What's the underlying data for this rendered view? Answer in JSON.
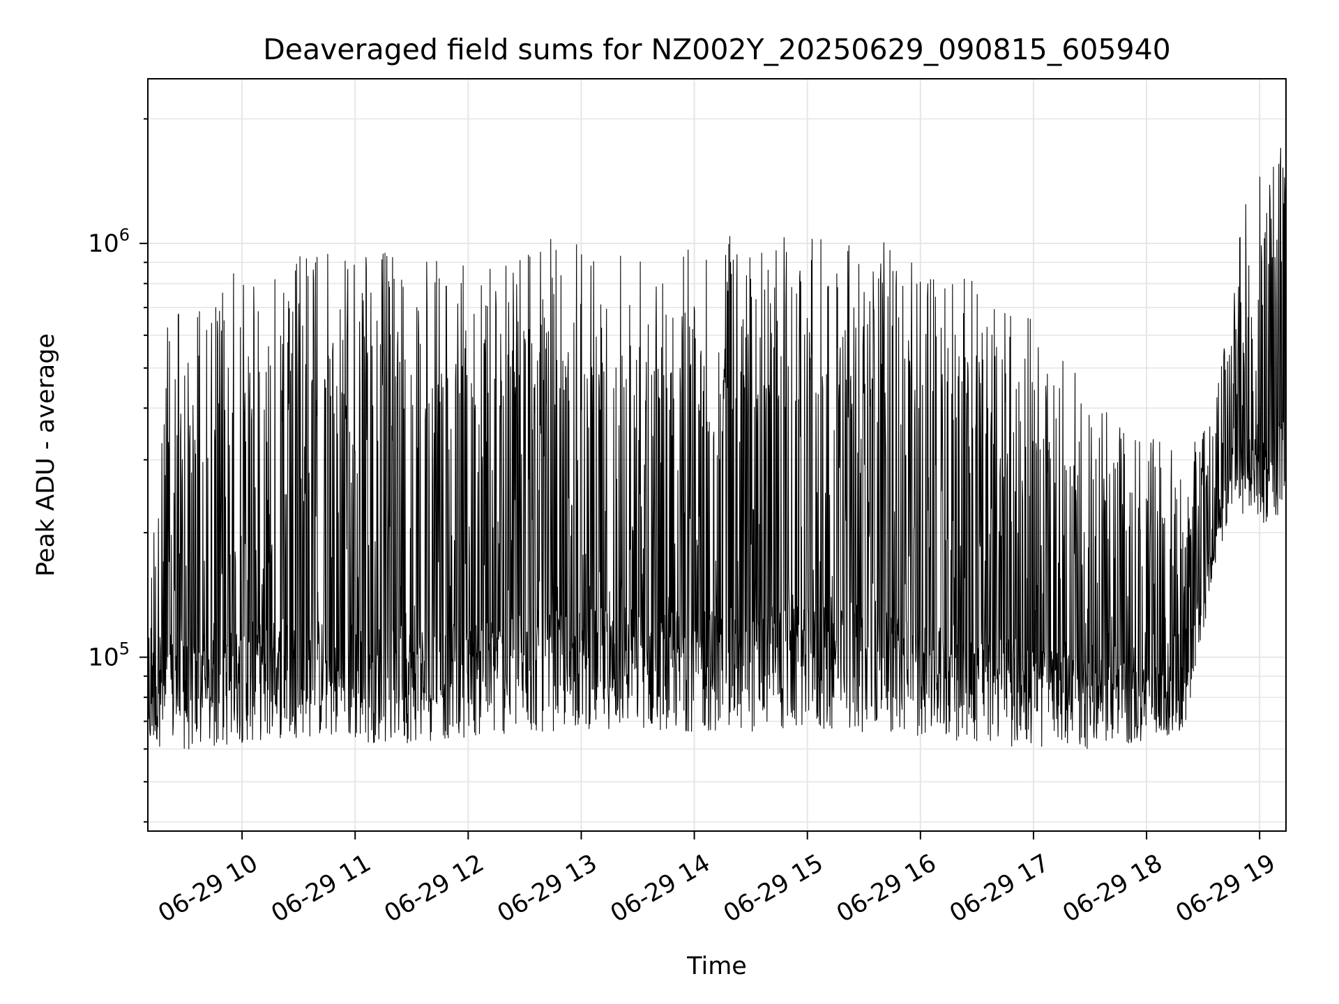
{
  "chart_data": {
    "type": "line",
    "title": "Deaveraged field sums for NZ002Y_20250629_090815_605940",
    "xlabel": "Time",
    "ylabel": "Peak ADU - average",
    "yscale": "log",
    "ylim": [
      38000,
      2500000
    ],
    "xlim": [
      "2025-06-29 09:10",
      "2025-06-29 19:14"
    ],
    "x_ticks": [
      {
        "time": "2025-06-29 10:00",
        "label": "06-29 10"
      },
      {
        "time": "2025-06-29 11:00",
        "label": "06-29 11"
      },
      {
        "time": "2025-06-29 12:00",
        "label": "06-29 12"
      },
      {
        "time": "2025-06-29 13:00",
        "label": "06-29 13"
      },
      {
        "time": "2025-06-29 14:00",
        "label": "06-29 14"
      },
      {
        "time": "2025-06-29 15:00",
        "label": "06-29 15"
      },
      {
        "time": "2025-06-29 16:00",
        "label": "06-29 16"
      },
      {
        "time": "2025-06-29 17:00",
        "label": "06-29 17"
      },
      {
        "time": "2025-06-29 18:00",
        "label": "06-29 18"
      },
      {
        "time": "2025-06-29 19:00",
        "label": "06-29 19"
      }
    ],
    "y_ticks": [
      {
        "value": 100000,
        "base": "10",
        "exp": "5"
      },
      {
        "value": 1000000,
        "base": "10",
        "exp": "6"
      }
    ],
    "grid": true,
    "line_color": "#000000",
    "grid_color": "#e6e6e6",
    "series": [
      {
        "name": "",
        "envelope": [
          {
            "time": "2025-06-29 09:10",
            "low": 62000,
            "high": 130000
          },
          {
            "time": "2025-06-29 09:20",
            "low": 60000,
            "high": 780000
          },
          {
            "time": "2025-06-29 09:40",
            "low": 58000,
            "high": 700000
          },
          {
            "time": "2025-06-29 10:00",
            "low": 62000,
            "high": 900000
          },
          {
            "time": "2025-06-29 10:30",
            "low": 64000,
            "high": 950000
          },
          {
            "time": "2025-06-29 11:00",
            "low": 62000,
            "high": 1000000
          },
          {
            "time": "2025-06-29 11:30",
            "low": 62000,
            "high": 930000
          },
          {
            "time": "2025-06-29 12:00",
            "low": 64000,
            "high": 880000
          },
          {
            "time": "2025-06-29 12:30",
            "low": 65000,
            "high": 1050000
          },
          {
            "time": "2025-06-29 13:00",
            "low": 67000,
            "high": 1000000
          },
          {
            "time": "2025-06-29 13:30",
            "low": 67000,
            "high": 1020000
          },
          {
            "time": "2025-06-29 14:00",
            "low": 66000,
            "high": 1020000
          },
          {
            "time": "2025-06-29 14:30",
            "low": 66000,
            "high": 1080000
          },
          {
            "time": "2025-06-29 15:00",
            "low": 66000,
            "high": 1080000
          },
          {
            "time": "2025-06-29 15:30",
            "low": 66000,
            "high": 1040000
          },
          {
            "time": "2025-06-29 16:00",
            "low": 64000,
            "high": 950000
          },
          {
            "time": "2025-06-29 16:30",
            "low": 62000,
            "high": 800000
          },
          {
            "time": "2025-06-29 17:00",
            "low": 60000,
            "high": 650000
          },
          {
            "time": "2025-06-29 17:30",
            "low": 60000,
            "high": 450000
          },
          {
            "time": "2025-06-29 18:00",
            "low": 62000,
            "high": 350000
          },
          {
            "time": "2025-06-29 18:20",
            "low": 65000,
            "high": 300000
          },
          {
            "time": "2025-06-29 18:26",
            "low": 92000,
            "high": 350000
          },
          {
            "time": "2025-06-29 18:35",
            "low": 150000,
            "high": 380000
          },
          {
            "time": "2025-06-29 18:45",
            "low": 230000,
            "high": 900000
          },
          {
            "time": "2025-06-29 19:00",
            "low": 200000,
            "high": 1700000
          },
          {
            "time": "2025-06-29 19:14",
            "low": 230000,
            "high": 1800000
          }
        ]
      }
    ]
  }
}
